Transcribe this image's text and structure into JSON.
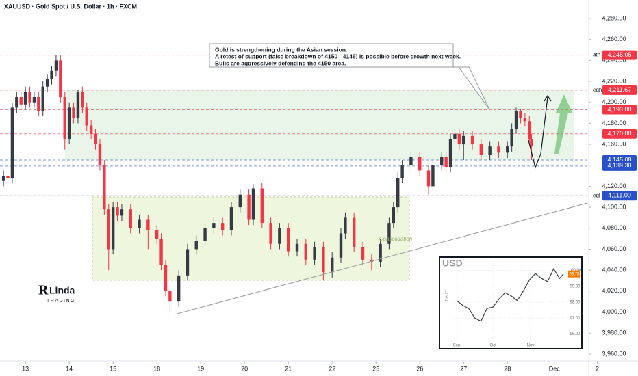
{
  "chart_data": [
    {
      "type": "candlestick",
      "title": "XAUUSD · Gold Spot / U.S. Dollar · 1h · FXCM",
      "up_color": "#363a45",
      "down_color": "#f23645",
      "x": [
        -0.5,
        -0.4,
        -0.3,
        -0.2,
        -0.1,
        0,
        0.1,
        0.2,
        0.3,
        0.4,
        0.5,
        0.6,
        0.7,
        0.8,
        0.9,
        1.0,
        1.1,
        1.2,
        1.3,
        1.4,
        1.5,
        1.6,
        1.7,
        1.8,
        1.9,
        2.0,
        2.1,
        2.2,
        2.4,
        2.6,
        2.8,
        3.0,
        3.1,
        3.2,
        3.3,
        3.5,
        3.7,
        3.9,
        4.1,
        4.3,
        4.5,
        4.7,
        4.9,
        5.1,
        5.2,
        5.4,
        5.6,
        5.8,
        6.0,
        6.2,
        6.4,
        6.6,
        6.8,
        7.0,
        7.2,
        7.3,
        7.5,
        7.7,
        7.9,
        8.1,
        8.3,
        8.4,
        8.5,
        8.6,
        8.8,
        9.0,
        9.2,
        9.3,
        9.5,
        9.6,
        9.7,
        9.8,
        9.9,
        10.0,
        10.2,
        10.4,
        10.6,
        10.8,
        11.0,
        11.1,
        11.2,
        11.3,
        11.4,
        11.5,
        11.55
      ],
      "open": [
        4125,
        4130,
        4128,
        4195,
        4205,
        4198,
        4210,
        4200,
        4205,
        4192,
        4215,
        4222,
        4230,
        4240,
        4205,
        4165,
        4195,
        4185,
        4210,
        4195,
        4178,
        4170,
        4160,
        4140,
        4098,
        4060,
        4100,
        4092,
        4098,
        4080,
        4088,
        4078,
        4070,
        4045,
        4020,
        4010,
        4035,
        4060,
        4068,
        4080,
        4085,
        4078,
        4100,
        4112,
        4088,
        4118,
        4085,
        4065,
        4080,
        4058,
        4065,
        4050,
        4062,
        4038,
        4052,
        4075,
        4090,
        4062,
        4050,
        4048,
        4065,
        4085,
        4100,
        4128,
        4140,
        4148,
        4135,
        4120,
        4140,
        4148,
        4138,
        4165,
        4170,
        4160,
        4168,
        4160,
        4150,
        4158,
        4152,
        4158,
        4175,
        4192,
        4185,
        4182,
        4165
      ],
      "high": [
        4135,
        4135,
        4200,
        4210,
        4210,
        4215,
        4215,
        4210,
        4210,
        4220,
        4227,
        4235,
        4245.05,
        4245,
        4210,
        4200,
        4200,
        4212,
        4215,
        4200,
        4183,
        4175,
        4165,
        4145,
        4103,
        4105,
        4105,
        4103,
        4103,
        4093,
        4093,
        4083,
        4075,
        4050,
        4025,
        4040,
        4065,
        4073,
        4085,
        4090,
        4090,
        4105,
        4117,
        4117,
        4122,
        4123,
        4090,
        4085,
        4085,
        4070,
        4070,
        4067,
        4067,
        4057,
        4080,
        4095,
        4095,
        4067,
        4055,
        4070,
        4090,
        4105,
        4133,
        4145,
        4153,
        4153,
        4140,
        4145,
        4153,
        4153,
        4170,
        4175,
        4175,
        4173,
        4173,
        4165,
        4163,
        4163,
        4163,
        4180,
        4195,
        4194,
        4190,
        4187,
        4170
      ],
      "low": [
        4120,
        4123,
        4123,
        4190,
        4193,
        4193,
        4195,
        4195,
        4187,
        4187,
        4210,
        4217,
        4225,
        4200,
        4155,
        4160,
        4180,
        4180,
        4190,
        4173,
        4165,
        4155,
        4135,
        4093,
        4040,
        4055,
        4087,
        4087,
        4075,
        4075,
        4060,
        4065,
        4040,
        4015,
        4000,
        4005,
        4030,
        4055,
        4063,
        4075,
        4073,
        4073,
        4095,
        4083,
        4083,
        4080,
        4060,
        4060,
        4053,
        4053,
        4045,
        4045,
        4030,
        4033,
        4047,
        4070,
        4057,
        4045,
        4040,
        4043,
        4060,
        4080,
        4095,
        4123,
        4135,
        4130,
        4112,
        4115,
        4135,
        4133,
        4133,
        4160,
        4155,
        4145,
        4155,
        4145,
        4145,
        4147,
        4147,
        4153,
        4170,
        4180,
        4177,
        4160,
        4145
      ],
      "close": [
        4130,
        4128,
        4195,
        4205,
        4198,
        4210,
        4200,
        4205,
        4192,
        4215,
        4222,
        4230,
        4240,
        4205,
        4165,
        4195,
        4185,
        4210,
        4195,
        4178,
        4170,
        4160,
        4140,
        4098,
        4060,
        4100,
        4092,
        4098,
        4080,
        4088,
        4078,
        4070,
        4045,
        4020,
        4010,
        4035,
        4060,
        4068,
        4080,
        4085,
        4078,
        4100,
        4112,
        4088,
        4118,
        4085,
        4065,
        4080,
        4058,
        4065,
        4050,
        4062,
        4038,
        4052,
        4075,
        4090,
        4062,
        4050,
        4048,
        4065,
        4085,
        4100,
        4128,
        4140,
        4148,
        4135,
        4120,
        4140,
        4148,
        4138,
        4165,
        4170,
        4160,
        4168,
        4160,
        4150,
        4158,
        4152,
        4158,
        4175,
        4192,
        4185,
        4182,
        4165,
        4158
      ],
      "xlim": [
        -0.58,
        13.98
      ],
      "xticks": [
        {
          "value": 0,
          "label": "13"
        },
        {
          "value": 1,
          "label": "14"
        },
        {
          "value": 2,
          "label": "15"
        },
        {
          "value": 3,
          "label": "18"
        },
        {
          "value": 4,
          "label": "19"
        },
        {
          "value": 5,
          "label": "20"
        },
        {
          "value": 6,
          "label": "21"
        },
        {
          "value": 7,
          "label": "22"
        },
        {
          "value": 8,
          "label": "25"
        },
        {
          "value": 9,
          "label": "26"
        },
        {
          "value": 10,
          "label": "27"
        },
        {
          "value": 11,
          "label": "28"
        },
        {
          "value": 12.07,
          "label": "Dec"
        },
        {
          "value": 13.05,
          "label": "2"
        }
      ],
      "ylim": [
        3953.4,
        4297.6
      ],
      "yticks": [
        {
          "value": 3960,
          "label": "3,960.00"
        },
        {
          "value": 3980,
          "label": "3,980.00"
        },
        {
          "value": 4000,
          "label": "4,000.00"
        },
        {
          "value": 4020,
          "label": "4,020.00"
        },
        {
          "value": 4040,
          "label": "4,040.00"
        },
        {
          "value": 4060,
          "label": "4,060.00"
        },
        {
          "value": 4080,
          "label": "4,080.00"
        },
        {
          "value": 4100,
          "label": "4,100.00"
        },
        {
          "value": 4120,
          "label": "4,120.00"
        },
        {
          "value": 4140,
          "label": "4,140.00"
        },
        {
          "value": 4160,
          "label": "4,160.00"
        },
        {
          "value": 4180,
          "label": "4,180.00"
        },
        {
          "value": 4200,
          "label": "4,200.00"
        },
        {
          "value": 4220,
          "label": "4,220.00"
        },
        {
          "value": 4240,
          "label": "4,240.00"
        },
        {
          "value": 4260,
          "label": "4,260.00"
        },
        {
          "value": 4280,
          "label": "4,280.00"
        }
      ],
      "grid": false,
      "levels": [
        {
          "value": 4245.05,
          "label": "4,245.05",
          "color": "#f23645",
          "name": "ath"
        },
        {
          "value": 4211.67,
          "label": "4,211.67",
          "color": "#f23645",
          "name": "eqh"
        },
        {
          "value": 4193.0,
          "label": "4,193.00",
          "color": "#f23645"
        },
        {
          "value": 4170.0,
          "label": "4,170.00",
          "color": "#f23645"
        },
        {
          "value": 4145.08,
          "label": "4,145.08",
          "color": "#2a50c8"
        },
        {
          "value": 4139.3,
          "label": "4,139.30",
          "color": "#2a50c8"
        },
        {
          "value": 4111.0,
          "label": "4,111.00",
          "color": "#2a50c8",
          "name": "eql"
        }
      ],
      "zone_label": "Consolidation"
    },
    {
      "type": "line",
      "title": "USD",
      "subtitle": "DAILY",
      "color": "#363a45",
      "x": [
        0,
        5,
        10,
        15,
        20,
        25,
        30,
        35,
        40,
        45,
        50,
        55,
        60,
        65,
        70,
        75,
        80,
        85,
        88
      ],
      "values": [
        98.1,
        97.8,
        97.6,
        97.0,
        96.8,
        97.6,
        97.7,
        98.2,
        98.6,
        98.4,
        98.1,
        98.7,
        99.4,
        99.8,
        99.5,
        99.3,
        100.1,
        99.5,
        99.78
      ],
      "last_label": "99.78",
      "xlim": [
        -4,
        92
      ],
      "xticks": [
        {
          "value": 0,
          "label": "Sep"
        },
        {
          "value": 30,
          "label": "Oct"
        },
        {
          "value": 61,
          "label": "Nov"
        }
      ],
      "ylim": [
        95.5,
        100.5
      ],
      "yticks": [
        {
          "value": 96,
          "label": "96.00"
        },
        {
          "value": 97,
          "label": "97.00"
        },
        {
          "value": 98,
          "label": "98.00"
        },
        {
          "value": 99,
          "label": "99.00"
        },
        {
          "value": 100,
          "label": "100.00"
        }
      ]
    }
  ],
  "annotation": {
    "lines": [
      "Gold is strengthening during the Asian session.",
      "A retest of support (false breakdown of 4150 - 4145) is possible before growth next week.",
      "Bulls are aggressively defending the 4150 area."
    ]
  },
  "logo": {
    "text": "Linda",
    "subtext": "TRADING"
  }
}
